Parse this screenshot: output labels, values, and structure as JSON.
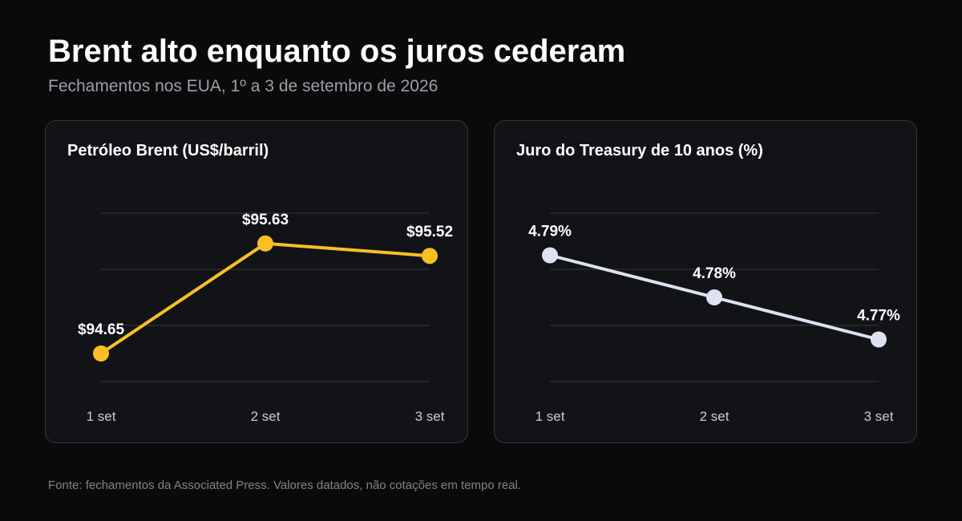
{
  "header": {
    "title": "Brent alto enquanto os juros cederam",
    "subtitle": "Fechamentos nos EUA, 1º a 3 de setembro de 2026"
  },
  "footer": {
    "source": "Fonte: fechamentos da Associated Press. Valores datados, não cotações em tempo real."
  },
  "chart_data": [
    {
      "type": "line",
      "title": "Petróleo Brent (US$/barril)",
      "categories": [
        "1 set",
        "2 set",
        "3 set"
      ],
      "series": [
        {
          "values": [
            94.65,
            95.63,
            95.52
          ],
          "labels": [
            "$94.65",
            "$95.63",
            "$95.52"
          ],
          "color": "#fbbf24"
        }
      ],
      "ylim": [
        94.4,
        95.9
      ],
      "grid": true,
      "legend": "none"
    },
    {
      "type": "line",
      "title": "Juro do Treasury de 10 anos (%)",
      "categories": [
        "1 set",
        "2 set",
        "3 set"
      ],
      "series": [
        {
          "values": [
            4.79,
            4.78,
            4.77
          ],
          "labels": [
            "4.79%",
            "4.78%",
            "4.77%"
          ],
          "color": "#dde1f0"
        }
      ],
      "ylim": [
        4.76,
        4.8
      ],
      "grid": true,
      "legend": "none"
    }
  ]
}
